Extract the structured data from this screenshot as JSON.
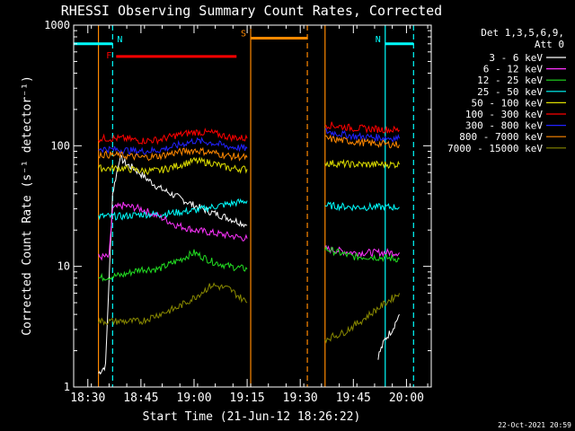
{
  "chart_data": {
    "type": "line",
    "title": "RHESSI Observing Summary Count Rates, Corrected",
    "xlabel": "Start Time (21-Jun-12 18:26:22)",
    "ylabel": "Corrected Count Rate (s⁻¹ detector⁻¹)",
    "y_scale": "log",
    "ylim": [
      1,
      1000
    ],
    "xlim": [
      "18:26",
      "20:07"
    ],
    "x_ticks": [
      "18:30",
      "18:45",
      "19:00",
      "19:15",
      "19:30",
      "19:45",
      "20:00"
    ],
    "y_ticks": [
      "1",
      "10",
      "100",
      "1000"
    ],
    "legend_header": [
      "Det 1,3,5,6,9,",
      "Att 0"
    ],
    "legend_position": "right",
    "footer_date": "22-Oct-2021 20:59",
    "series": [
      {
        "name": "3 - 6 keV",
        "color": "#ffffff",
        "segments": [
          {
            "x": [
              "18:33",
              "18:35",
              "18:37",
              "18:39",
              "18:41",
              "18:43",
              "18:46",
              "18:50",
              "18:55",
              "19:00",
              "19:05",
              "19:10",
              "19:15"
            ],
            "y": [
              1.3,
              1.5,
              40,
              80,
              70,
              65,
              55,
              45,
              38,
              32,
              28,
              25,
              22
            ]
          },
          {
            "x": [
              "19:52",
              "19:54",
              "19:56",
              "19:58"
            ],
            "y": [
              1.8,
              2.5,
              3,
              4
            ]
          }
        ]
      },
      {
        "name": "6 - 12 keV",
        "color": "#ff33ff",
        "segments": [
          {
            "x": [
              "18:33",
              "18:36",
              "18:37",
              "18:40",
              "18:45",
              "18:50",
              "18:55",
              "19:00",
              "19:05",
              "19:10",
              "19:15"
            ],
            "y": [
              12,
              12,
              30,
              32,
              30,
              26,
              22,
              20,
              19,
              18,
              17
            ]
          },
          {
            "x": [
              "19:37",
              "19:45",
              "19:50",
              "19:58"
            ],
            "y": [
              14,
              13,
              13,
              13
            ]
          }
        ]
      },
      {
        "name": "12 - 25 keV",
        "color": "#22dd22",
        "segments": [
          {
            "x": [
              "18:33",
              "18:40",
              "18:45",
              "18:50",
              "18:55",
              "19:00",
              "19:05",
              "19:10",
              "19:15"
            ],
            "y": [
              8,
              8.5,
              9.5,
              9.5,
              11,
              13,
              11,
              10,
              9.5
            ]
          },
          {
            "x": [
              "19:37",
              "19:45",
              "19:50",
              "19:58"
            ],
            "y": [
              14,
              12,
              12,
              11.5
            ]
          }
        ]
      },
      {
        "name": "25 - 50 keV",
        "color": "#00ffff",
        "segments": [
          {
            "x": [
              "18:33",
              "18:40",
              "18:45",
              "18:50",
              "18:55",
              "19:00",
              "19:05",
              "19:10",
              "19:15"
            ],
            "y": [
              26,
              26,
              27,
              27,
              28,
              29,
              31,
              33,
              35
            ]
          },
          {
            "x": [
              "19:37",
              "19:45",
              "19:50",
              "19:58"
            ],
            "y": [
              32,
              31,
              31,
              31
            ]
          }
        ]
      },
      {
        "name": "50 - 100 keV",
        "color": "#dddd00",
        "segments": [
          {
            "x": [
              "18:33",
              "18:40",
              "18:45",
              "18:50",
              "18:55",
              "19:00",
              "19:05",
              "19:10",
              "19:15"
            ],
            "y": [
              65,
              65,
              62,
              62,
              68,
              75,
              72,
              65,
              64
            ]
          },
          {
            "x": [
              "19:37",
              "19:45",
              "19:50",
              "19:58"
            ],
            "y": [
              72,
              70,
              70,
              70
            ]
          }
        ]
      },
      {
        "name": "100 - 300 keV",
        "color": "#ff0000",
        "segments": [
          {
            "x": [
              "18:33",
              "18:40",
              "18:45",
              "18:50",
              "18:55",
              "19:00",
              "19:05",
              "19:10",
              "19:15"
            ],
            "y": [
              115,
              115,
              110,
              112,
              122,
              130,
              128,
              118,
              115
            ]
          },
          {
            "x": [
              "19:37",
              "19:45",
              "19:50",
              "19:58"
            ],
            "y": [
              150,
              140,
              138,
              135
            ]
          }
        ]
      },
      {
        "name": "300 - 800 keV",
        "color": "#2222ff",
        "segments": [
          {
            "x": [
              "18:33",
              "18:40",
              "18:45",
              "18:50",
              "18:55",
              "19:00",
              "19:05",
              "19:10",
              "19:15"
            ],
            "y": [
              95,
              92,
              90,
              92,
              100,
              110,
              106,
              98,
              95
            ]
          },
          {
            "x": [
              "19:37",
              "19:45",
              "19:50",
              "19:58"
            ],
            "y": [
              132,
              120,
              118,
              115
            ]
          }
        ]
      },
      {
        "name": "800 - 7000 keV",
        "color": "#ff8800",
        "segments": [
          {
            "x": [
              "18:33",
              "18:40",
              "18:45",
              "18:50",
              "18:55",
              "19:00",
              "19:05",
              "19:10",
              "19:15"
            ],
            "y": [
              85,
              83,
              80,
              82,
              88,
              92,
              88,
              82,
              80
            ]
          },
          {
            "x": [
              "19:37",
              "19:45",
              "19:50",
              "19:58"
            ],
            "y": [
              115,
              108,
              105,
              102
            ]
          }
        ]
      },
      {
        "name": "7000 - 15000 keV",
        "color": "#888800",
        "segments": [
          {
            "x": [
              "18:33",
              "18:40",
              "18:45",
              "18:50",
              "18:55",
              "19:00",
              "19:05",
              "19:10",
              "19:15"
            ],
            "y": [
              3.5,
              3.5,
              3.5,
              4,
              4.5,
              5.5,
              7,
              6.5,
              5
            ]
          },
          {
            "x": [
              "19:37",
              "19:42",
              "19:47",
              "19:52",
              "19:58"
            ],
            "y": [
              2.5,
              2.8,
              3.5,
              4.5,
              6
            ]
          }
        ]
      }
    ],
    "annotations": [
      {
        "label": "F",
        "color": "#ff0000",
        "x_start": "18:38",
        "x_end": "19:12",
        "y": 550
      },
      {
        "label": "N",
        "color": "#00ffff",
        "x_start": "18:26",
        "x_end": "18:37",
        "y": 700
      },
      {
        "label": "N",
        "color": "#00ffff",
        "x_start": "19:54",
        "x_end": "20:02",
        "y": 700
      },
      {
        "label": "S",
        "color": "#ff8800",
        "x_start": "19:16",
        "x_end": "19:32",
        "y": 780
      }
    ],
    "vertical_lines": [
      {
        "x": "18:33",
        "color": "#ff8800",
        "style": "solid"
      },
      {
        "x": "18:37",
        "color": "#00ffff",
        "style": "dashed"
      },
      {
        "x": "19:16",
        "color": "#ff8800",
        "style": "solid"
      },
      {
        "x": "19:32",
        "color": "#ff8800",
        "style": "dashed"
      },
      {
        "x": "19:37",
        "color": "#ff8800",
        "style": "solid"
      },
      {
        "x": "19:54",
        "color": "#00ffff",
        "style": "solid"
      },
      {
        "x": "20:02",
        "color": "#00ffff",
        "style": "dashed"
      }
    ]
  }
}
